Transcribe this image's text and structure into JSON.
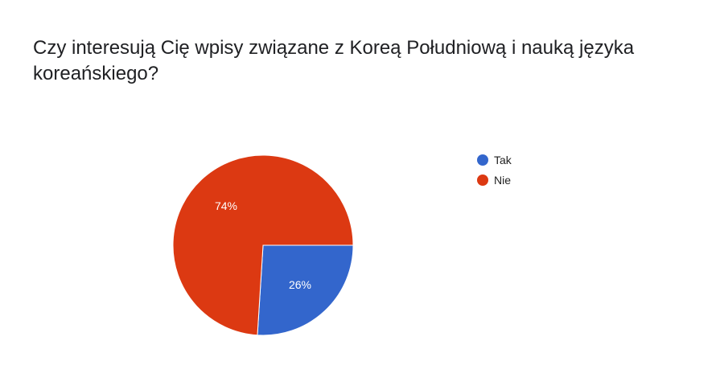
{
  "chart_data": {
    "type": "pie",
    "title": "Czy interesują Cię wpisy związane z Koreą Południową i nauką języka koreańskiego?",
    "slices": [
      {
        "label": "Tak",
        "value": 26,
        "display": "26%",
        "color": "#3366cc"
      },
      {
        "label": "Nie",
        "value": 74,
        "display": "74%",
        "color": "#dc3912"
      }
    ],
    "legend": "right"
  }
}
